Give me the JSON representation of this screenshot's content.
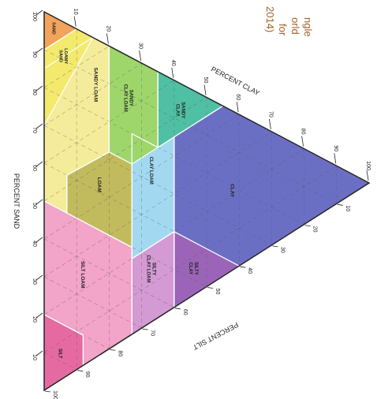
{
  "caption_lines": [
    "ngle",
    "orld",
    "for",
    "2014)"
  ],
  "axes": {
    "clay": "PERCENT CLAY",
    "silt": "PERCENT SILT",
    "sand": "PERCENT SAND"
  },
  "ticks": {
    "clay": [
      "10",
      "20",
      "30",
      "40",
      "50",
      "60",
      "70",
      "80",
      "90",
      "100"
    ],
    "silt": [
      "10",
      "20",
      "30",
      "40",
      "50",
      "60",
      "70",
      "80",
      "90",
      "100"
    ],
    "sand": [
      "10",
      "20",
      "30",
      "40",
      "50",
      "60",
      "70",
      "80",
      "90",
      "100"
    ]
  },
  "regions": [
    {
      "key": "clay",
      "lines": [
        "CLAY"
      ],
      "color": "#6b6fc4"
    },
    {
      "key": "silty-clay",
      "lines": [
        "SILTY",
        "CLAY"
      ],
      "color": "#9b64b8"
    },
    {
      "key": "sandy-clay",
      "lines": [
        "SANDY",
        "CLAY"
      ],
      "color": "#4fc0a3"
    },
    {
      "key": "clay-loam",
      "lines": [
        "CLAY LOAM"
      ],
      "color": "#a3d9f0"
    },
    {
      "key": "silty-clay-loam",
      "lines": [
        "SILTY",
        "CLAY LOAM"
      ],
      "color": "#d39ad4"
    },
    {
      "key": "sandy-clay-loam",
      "lines": [
        "SANDY",
        "CLAY LOAM"
      ],
      "color": "#9ed66c"
    },
    {
      "key": "loam",
      "lines": [
        "LOAM"
      ],
      "color": "#c2bb5e"
    },
    {
      "key": "silt-loam",
      "lines": [
        "SILT LOAM"
      ],
      "color": "#f2a4c9"
    },
    {
      "key": "sandy-loam",
      "lines": [
        "SANDY LOAM"
      ],
      "color": "#f4ec9a"
    },
    {
      "key": "loamy-sand",
      "lines": [
        "LOAMY",
        "SAND"
      ],
      "color": "#f3e96c"
    },
    {
      "key": "sand",
      "lines": [
        "SAND"
      ],
      "color": "#f2a35c"
    },
    {
      "key": "silt",
      "lines": [
        "SILT"
      ],
      "color": "#e66aa2"
    }
  ]
}
